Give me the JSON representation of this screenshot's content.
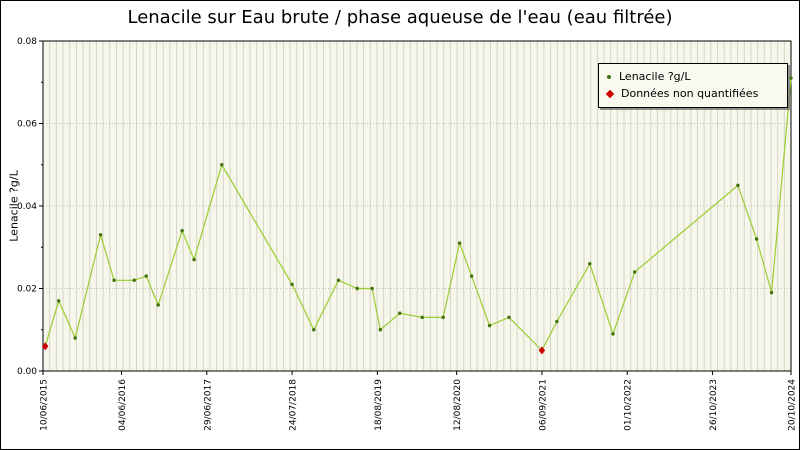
{
  "chart_data": {
    "type": "line",
    "title": "Lenacile sur Eau brute / phase aqueuse de l'eau (eau filtrée)",
    "ylabel": "Lenacile ?g/L",
    "ylim": [
      0,
      0.08
    ],
    "yticks": [
      0,
      0.02,
      0.04,
      0.06,
      0.08
    ],
    "ytick_labels": [
      "0.00",
      "0.02",
      "0.04",
      "0.06",
      "0.08"
    ],
    "yticks_minor": [
      0.01,
      0.03,
      0.05,
      0.07
    ],
    "xtick_labels": [
      "10/06/2015",
      "04/06/2016",
      "29/06/2017",
      "24/07/2018",
      "18/08/2019",
      "12/08/2020",
      "06/09/2021",
      "01/10/2022",
      "26/10/2023",
      "20/10/2024"
    ],
    "xticks": [
      0,
      0.105,
      0.219,
      0.333,
      0.447,
      0.553,
      0.667,
      0.781,
      0.895,
      1
    ],
    "legend": [
      {
        "label": "Lenacile ?g/L",
        "marker": "green-dot"
      },
      {
        "label": "Données non quantifiées",
        "marker": "red-diamond"
      }
    ],
    "series": [
      {
        "name": "Lenacile ?g/L",
        "points": [
          {
            "x": 0.003,
            "v": 0.006,
            "nq": true
          },
          {
            "x": 0.021,
            "v": 0.017
          },
          {
            "x": 0.043,
            "v": 0.008
          },
          {
            "x": 0.077,
            "v": 0.033
          },
          {
            "x": 0.095,
            "v": 0.022
          },
          {
            "x": 0.122,
            "v": 0.022
          },
          {
            "x": 0.138,
            "v": 0.023
          },
          {
            "x": 0.154,
            "v": 0.016
          },
          {
            "x": 0.186,
            "v": 0.034
          },
          {
            "x": 0.202,
            "v": 0.027
          },
          {
            "x": 0.239,
            "v": 0.05
          },
          {
            "x": 0.333,
            "v": 0.021
          },
          {
            "x": 0.362,
            "v": 0.01
          },
          {
            "x": 0.395,
            "v": 0.022
          },
          {
            "x": 0.42,
            "v": 0.02
          },
          {
            "x": 0.44,
            "v": 0.02
          },
          {
            "x": 0.451,
            "v": 0.01
          },
          {
            "x": 0.477,
            "v": 0.014
          },
          {
            "x": 0.507,
            "v": 0.013
          },
          {
            "x": 0.535,
            "v": 0.013
          },
          {
            "x": 0.557,
            "v": 0.031
          },
          {
            "x": 0.573,
            "v": 0.023
          },
          {
            "x": 0.597,
            "v": 0.011
          },
          {
            "x": 0.623,
            "v": 0.013
          },
          {
            "x": 0.667,
            "v": 0.005,
            "nq": true
          },
          {
            "x": 0.687,
            "v": 0.012
          },
          {
            "x": 0.731,
            "v": 0.026
          },
          {
            "x": 0.762,
            "v": 0.009
          },
          {
            "x": 0.791,
            "v": 0.024
          },
          {
            "x": 0.929,
            "v": 0.045
          },
          {
            "x": 0.954,
            "v": 0.032
          },
          {
            "x": 0.974,
            "v": 0.019
          },
          {
            "x": 1,
            "v": 0.071
          }
        ]
      }
    ],
    "colors": {
      "line": "#9acd32",
      "marker": "#41720c",
      "nonquantified": "#cc0000",
      "plot_bg": "#f6f6ea",
      "vgrid": "#d4d4c8",
      "hgrid": "#bdbdb2",
      "axis": "#000000"
    },
    "grid": {
      "vline_intervals": 112,
      "hgrid_style": "dotted",
      "legend_position": "top-right"
    }
  }
}
